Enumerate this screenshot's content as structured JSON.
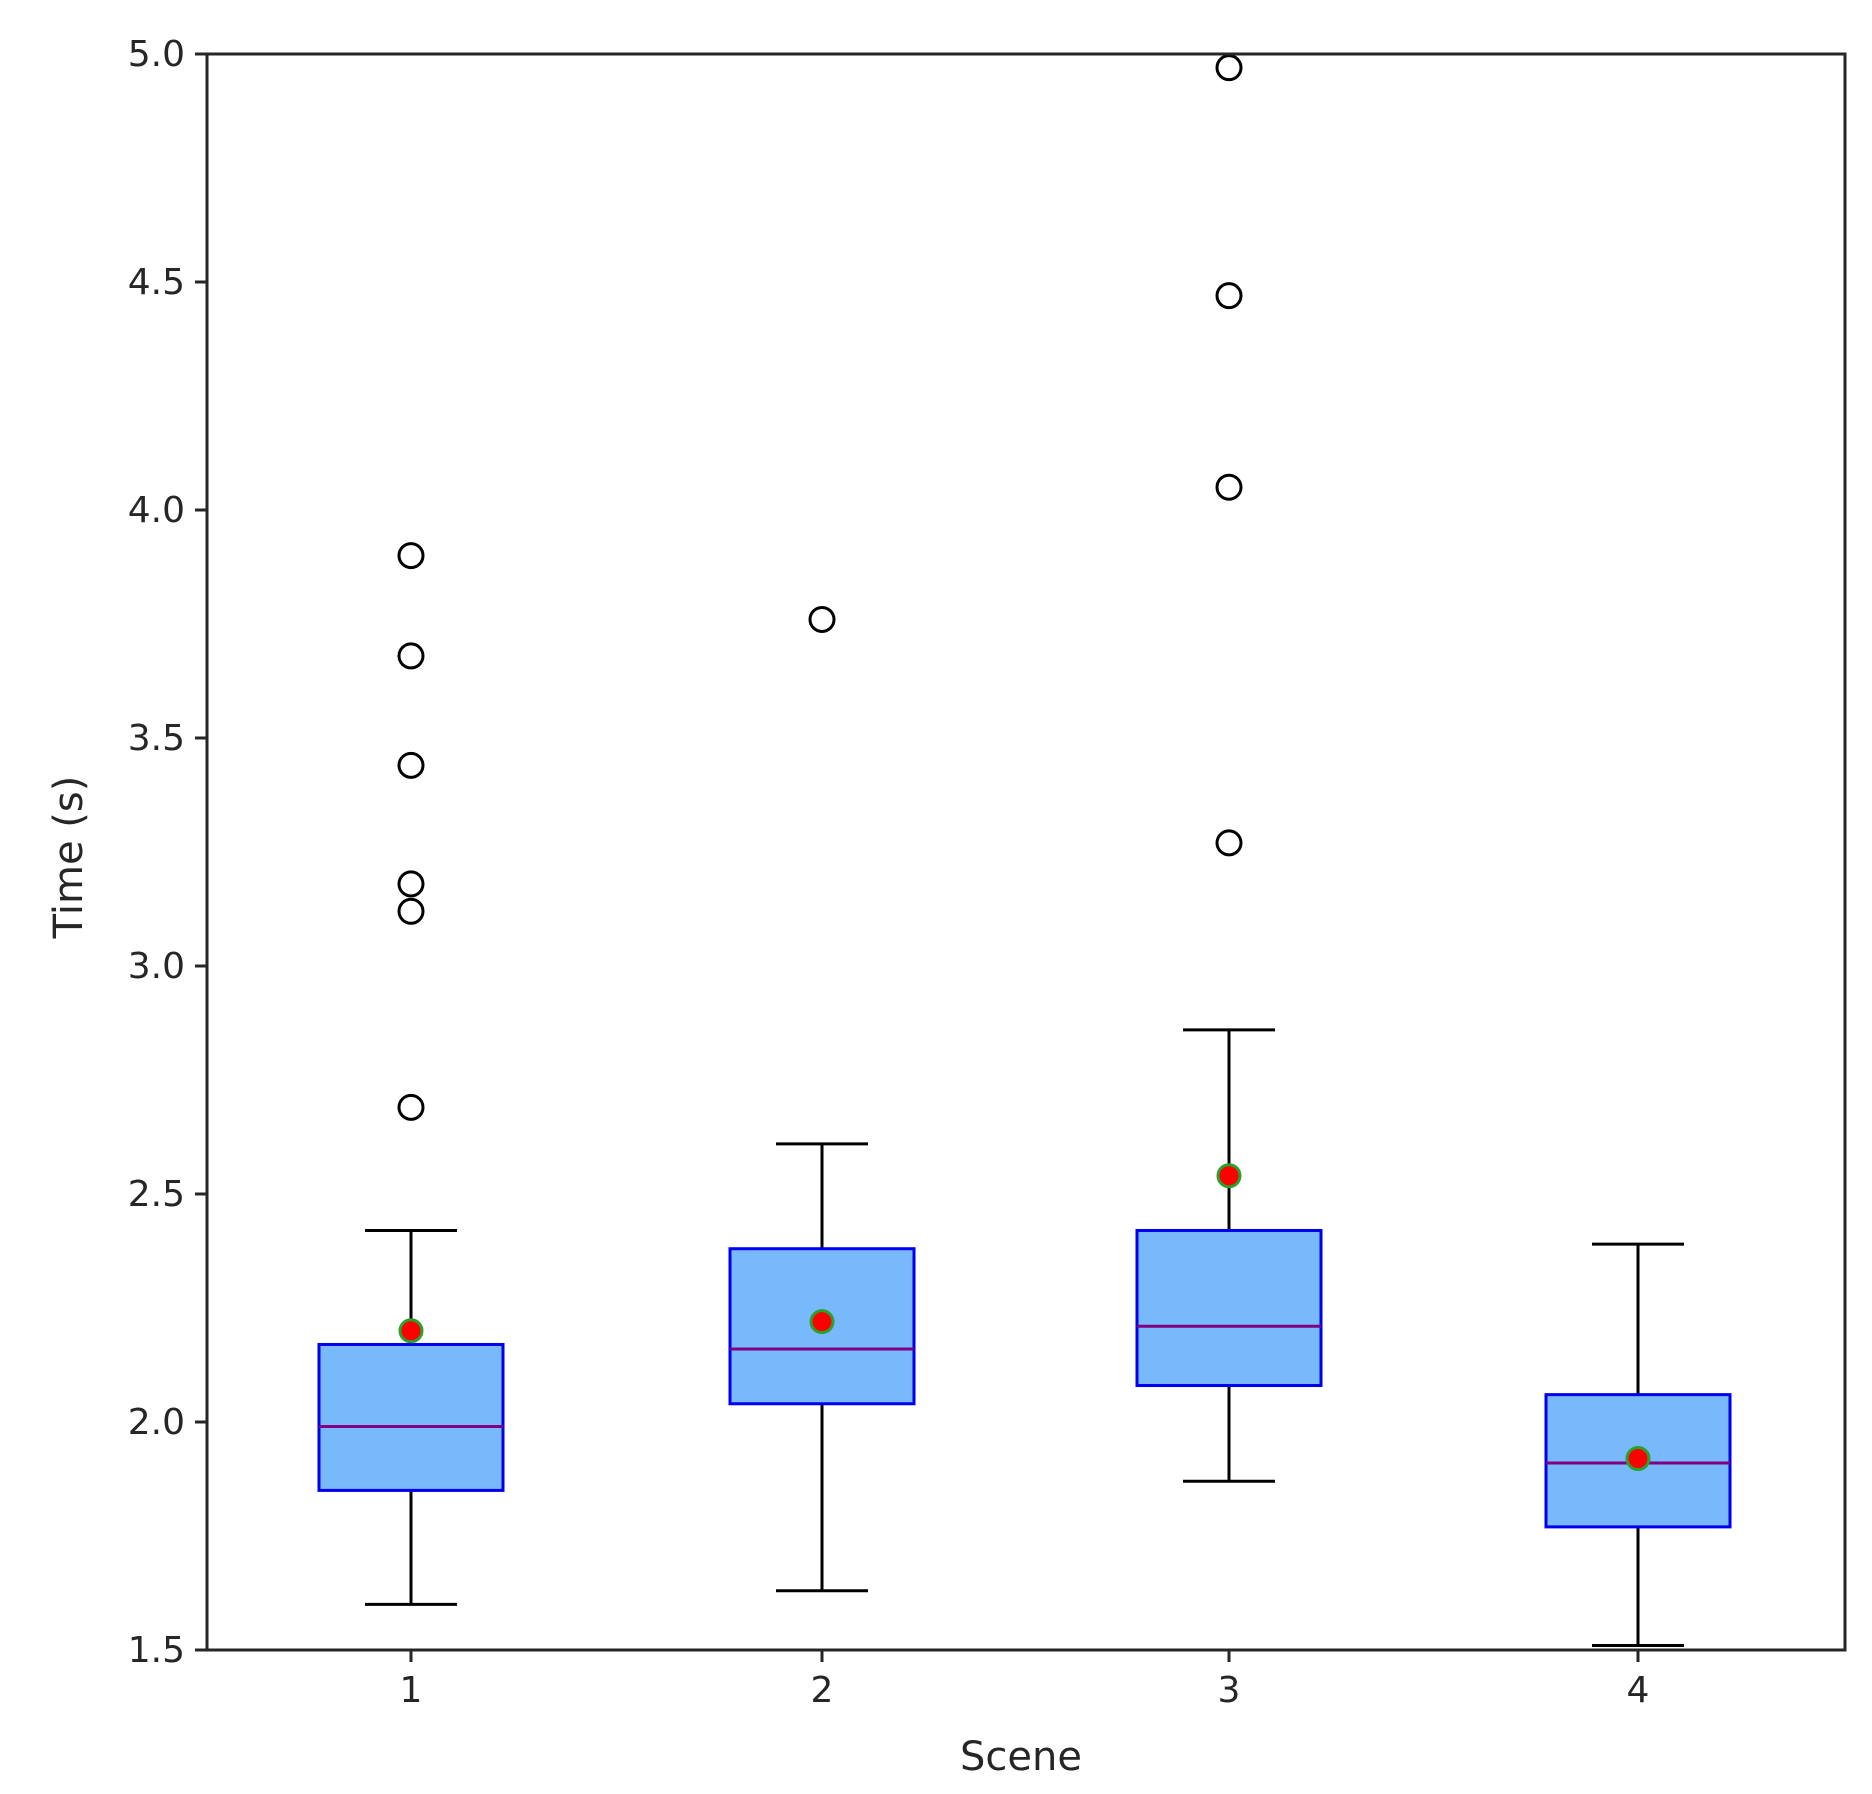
{
  "chart_data": {
    "type": "box",
    "title": "",
    "xlabel": "Scene",
    "ylabel": "Time (s)",
    "ylim": [
      1.5,
      5.0
    ],
    "yticks": [
      "1.5",
      "2.0",
      "2.5",
      "3.0",
      "3.5",
      "4.0",
      "4.5",
      "5.0"
    ],
    "categories": [
      "1",
      "2",
      "3",
      "4"
    ],
    "boxes": [
      {
        "category": "1",
        "whisker_low": 1.6,
        "q1": 1.85,
        "median": 1.99,
        "q3": 2.17,
        "whisker_high": 2.42,
        "mean": 2.2,
        "outliers": [
          2.69,
          3.12,
          3.18,
          3.44,
          3.68,
          3.9
        ]
      },
      {
        "category": "2",
        "whisker_low": 1.63,
        "q1": 2.04,
        "median": 2.16,
        "q3": 2.38,
        "whisker_high": 2.61,
        "mean": 2.22,
        "outliers": [
          3.76
        ]
      },
      {
        "category": "3",
        "whisker_low": 1.87,
        "q1": 2.08,
        "median": 2.21,
        "q3": 2.42,
        "whisker_high": 2.86,
        "mean": 2.54,
        "outliers": [
          3.27,
          4.05,
          4.47,
          4.97
        ]
      },
      {
        "category": "4",
        "whisker_low": 1.51,
        "q1": 1.77,
        "median": 1.91,
        "q3": 2.06,
        "whisker_high": 2.39,
        "mean": 1.92,
        "outliers": []
      }
    ],
    "colors": {
      "box_fill": "#77b9fa",
      "box_edge": "#0000ee",
      "median": "#800080",
      "mean_fill": "#ff0000",
      "mean_edge": "#2ca02c",
      "whisker": "#000000",
      "outlier": "#000000",
      "axis": "#262626"
    }
  }
}
